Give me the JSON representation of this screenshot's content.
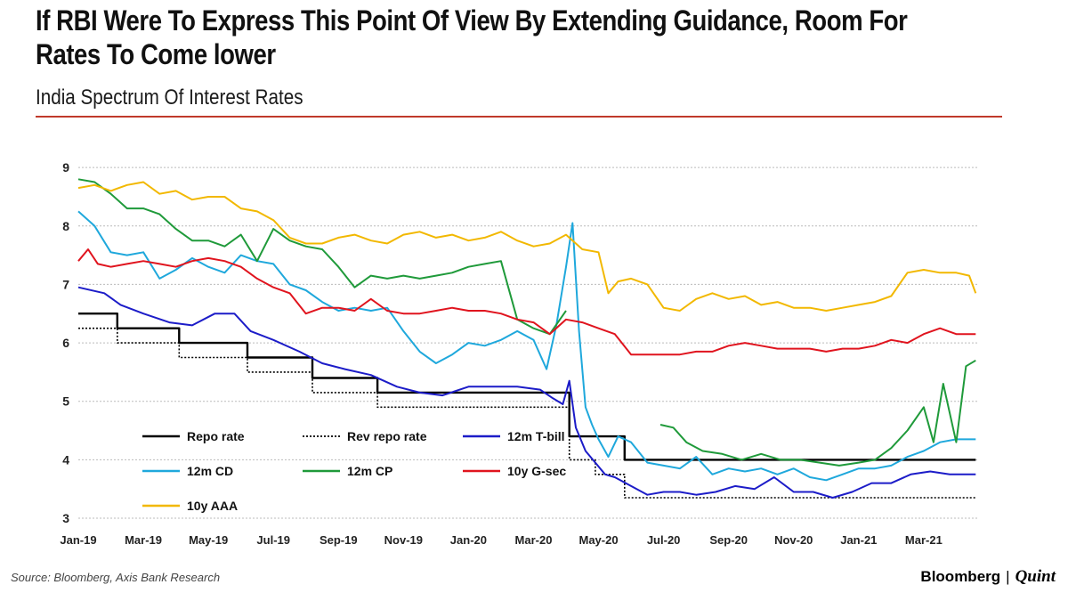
{
  "header": {
    "title": "If RBI Were To Express This Point Of View By Extending Guidance, Room For Rates To Come lower",
    "subtitle": "India Spectrum Of Interest Rates"
  },
  "footer": {
    "source": "Source: Bloomberg, Axis Bank Research",
    "brand_1": "Bloomberg",
    "separator": "|",
    "brand_2": "Quint"
  },
  "colors": {
    "repo": "#000000",
    "rev_repo": "#000000",
    "tbill": "#1c1cc8",
    "cd": "#1fa8dc",
    "cp": "#1f9a3a",
    "gsec": "#e0141e",
    "aaa": "#f2b800",
    "rule": "#c0392b",
    "grid": "#bbbbbb"
  },
  "chart_data": {
    "type": "line",
    "title": "India Spectrum Of Interest Rates",
    "xlabel": "",
    "ylabel": "",
    "xlim": [
      0,
      27.7
    ],
    "ylim": [
      3,
      9.2
    ],
    "yticks": [
      3,
      4,
      5,
      6,
      7,
      8,
      9
    ],
    "x_ticks": [
      {
        "x": 0,
        "label": "Jan-19"
      },
      {
        "x": 2,
        "label": "Mar-19"
      },
      {
        "x": 4,
        "label": "May-19"
      },
      {
        "x": 6,
        "label": "Jul-19"
      },
      {
        "x": 8,
        "label": "Sep-19"
      },
      {
        "x": 10,
        "label": "Nov-19"
      },
      {
        "x": 12,
        "label": "Jan-20"
      },
      {
        "x": 14,
        "label": "Mar-20"
      },
      {
        "x": 16,
        "label": "May-20"
      },
      {
        "x": 18,
        "label": "Jul-20"
      },
      {
        "x": 20,
        "label": "Sep-20"
      },
      {
        "x": 22,
        "label": "Nov-20"
      },
      {
        "x": 24,
        "label": "Jan-21"
      },
      {
        "x": 26,
        "label": "Mar-21"
      }
    ],
    "grid": true,
    "legend_position": "lower-left",
    "series": [
      {
        "key": "repo",
        "name": "Repo rate",
        "style": "solid-step",
        "x": [
          0,
          1.2,
          1.2,
          3.1,
          3.1,
          5.2,
          5.2,
          7.2,
          7.2,
          9.2,
          9.2,
          15.1,
          15.1,
          16.8,
          16.8,
          27.6
        ],
        "y": [
          6.5,
          6.5,
          6.25,
          6.25,
          6.0,
          6.0,
          5.75,
          5.75,
          5.4,
          5.4,
          5.15,
          5.15,
          4.4,
          4.4,
          4.0,
          4.0
        ]
      },
      {
        "key": "rev_repo",
        "name": "Rev repo rate",
        "style": "dotted-step",
        "x": [
          0,
          1.2,
          1.2,
          3.1,
          3.1,
          5.2,
          5.2,
          7.2,
          7.2,
          9.2,
          9.2,
          15.1,
          15.1,
          15.9,
          15.9,
          16.8,
          16.8,
          27.6
        ],
        "y": [
          6.25,
          6.25,
          6.0,
          6.0,
          5.75,
          5.75,
          5.5,
          5.5,
          5.15,
          5.15,
          4.9,
          4.9,
          4.0,
          4.0,
          3.75,
          3.75,
          3.35,
          3.35
        ]
      },
      {
        "key": "tbill",
        "name": "12m T-bill",
        "style": "solid",
        "x": [
          0,
          0.8,
          1.3,
          2,
          2.8,
          3.5,
          4.2,
          4.8,
          5.3,
          6,
          6.8,
          7.5,
          8.2,
          9,
          9.8,
          10.5,
          11.2,
          12,
          12.8,
          13.5,
          14.2,
          14.6,
          14.9,
          15.1,
          15.3,
          15.6,
          15.9,
          16.2,
          16.5,
          17,
          17.5,
          18,
          18.5,
          19,
          19.6,
          20.2,
          20.8,
          21.4,
          22,
          22.6,
          23.2,
          23.8,
          24.4,
          25,
          25.6,
          26.2,
          26.8,
          27.6
        ],
        "y": [
          6.95,
          6.85,
          6.65,
          6.5,
          6.35,
          6.3,
          6.5,
          6.5,
          6.2,
          6.05,
          5.85,
          5.65,
          5.55,
          5.45,
          5.25,
          5.15,
          5.1,
          5.25,
          5.25,
          5.25,
          5.2,
          5.05,
          4.95,
          5.35,
          4.55,
          4.15,
          3.95,
          3.75,
          3.7,
          3.55,
          3.4,
          3.45,
          3.45,
          3.4,
          3.45,
          3.55,
          3.5,
          3.7,
          3.45,
          3.45,
          3.35,
          3.45,
          3.6,
          3.6,
          3.75,
          3.8,
          3.75,
          3.75
        ]
      },
      {
        "key": "cd",
        "name": "12m CD",
        "style": "solid",
        "x": [
          0,
          0.5,
          1,
          1.5,
          2,
          2.5,
          3,
          3.5,
          4,
          4.5,
          5,
          5.5,
          6,
          6.5,
          7,
          7.5,
          8,
          8.5,
          9,
          9.5,
          10,
          10.5,
          11,
          11.5,
          12,
          12.5,
          13,
          13.5,
          14,
          14.4,
          14.7,
          15,
          15.2,
          15.4,
          15.6,
          15.8,
          16,
          16.3,
          16.6,
          17,
          17.5,
          18,
          18.5,
          19,
          19.5,
          20,
          20.5,
          21,
          21.5,
          22,
          22.5,
          23,
          23.5,
          24,
          24.5,
          25,
          25.5,
          26,
          26.5,
          27,
          27.6
        ],
        "y": [
          8.25,
          8.0,
          7.55,
          7.5,
          7.55,
          7.1,
          7.25,
          7.45,
          7.3,
          7.2,
          7.5,
          7.4,
          7.35,
          7.0,
          6.9,
          6.7,
          6.55,
          6.6,
          6.55,
          6.6,
          6.2,
          5.85,
          5.65,
          5.8,
          6.0,
          5.95,
          6.05,
          6.2,
          6.05,
          5.55,
          6.3,
          7.3,
          8.05,
          6.2,
          4.9,
          4.6,
          4.35,
          4.05,
          4.4,
          4.3,
          3.95,
          3.9,
          3.85,
          4.05,
          3.75,
          3.85,
          3.8,
          3.85,
          3.75,
          3.85,
          3.7,
          3.65,
          3.75,
          3.85,
          3.85,
          3.9,
          4.05,
          4.15,
          4.3,
          4.35,
          4.35
        ]
      },
      {
        "key": "cp",
        "name": "12m CP",
        "style": "solid",
        "x": [
          0,
          0.5,
          1,
          1.5,
          2,
          2.5,
          3,
          3.5,
          4,
          4.5,
          5,
          5.5,
          6,
          6.5,
          7,
          7.5,
          8,
          8.5,
          9,
          9.5,
          10,
          10.5,
          11,
          11.5,
          12,
          12.5,
          13,
          13.5,
          14,
          14.5,
          15
        ],
        "y": [
          8.8,
          8.75,
          8.55,
          8.3,
          8.3,
          8.2,
          7.95,
          7.75,
          7.75,
          7.65,
          7.85,
          7.4,
          7.95,
          7.75,
          7.65,
          7.6,
          7.3,
          6.95,
          7.15,
          7.1,
          7.15,
          7.1,
          7.15,
          7.2,
          7.3,
          7.35,
          7.4,
          6.4,
          6.25,
          6.15,
          6.55
        ]
      },
      {
        "key": "cp2",
        "name": "12m CP",
        "style": "solid",
        "legend": false,
        "x": [
          17.9,
          18.3,
          18.7,
          19.2,
          19.8,
          20.4,
          21,
          21.6,
          22.2,
          22.8,
          23.4,
          24,
          24.5,
          25,
          25.5,
          26,
          26.3,
          26.6,
          27,
          27.3,
          27.6
        ],
        "y": [
          4.6,
          4.55,
          4.3,
          4.15,
          4.1,
          4.0,
          4.1,
          4.0,
          4.0,
          3.95,
          3.9,
          3.95,
          4.0,
          4.2,
          4.5,
          4.9,
          4.3,
          5.3,
          4.3,
          5.6,
          5.7
        ]
      },
      {
        "key": "gsec",
        "name": "10y G-sec",
        "style": "solid",
        "x": [
          0,
          0.3,
          0.6,
          1,
          1.5,
          2,
          2.5,
          3,
          3.5,
          4,
          4.5,
          5,
          5.5,
          6,
          6.5,
          7,
          7.5,
          8,
          8.5,
          9,
          9.5,
          10,
          10.5,
          11,
          11.5,
          12,
          12.5,
          13,
          13.5,
          14,
          14.5,
          15,
          15.5,
          16,
          16.5,
          17,
          17.5,
          18,
          18.5,
          19,
          19.5,
          20,
          20.5,
          21,
          21.5,
          22,
          22.5,
          23,
          23.5,
          24,
          24.5,
          25,
          25.5,
          26,
          26.5,
          27,
          27.6
        ],
        "y": [
          7.4,
          7.6,
          7.35,
          7.3,
          7.35,
          7.4,
          7.35,
          7.3,
          7.4,
          7.45,
          7.4,
          7.3,
          7.1,
          6.95,
          6.85,
          6.5,
          6.6,
          6.6,
          6.55,
          6.75,
          6.55,
          6.5,
          6.5,
          6.55,
          6.6,
          6.55,
          6.55,
          6.5,
          6.4,
          6.35,
          6.15,
          6.4,
          6.35,
          6.25,
          6.15,
          5.8,
          5.8,
          5.8,
          5.8,
          5.85,
          5.85,
          5.95,
          6.0,
          5.95,
          5.9,
          5.9,
          5.9,
          5.85,
          5.9,
          5.9,
          5.95,
          6.05,
          6.0,
          6.15,
          6.25,
          6.15,
          6.15
        ]
      },
      {
        "key": "aaa",
        "name": "10y AAA",
        "style": "solid",
        "x": [
          0,
          0.5,
          1,
          1.5,
          2,
          2.5,
          3,
          3.5,
          4,
          4.5,
          5,
          5.5,
          6,
          6.5,
          7,
          7.5,
          8,
          8.5,
          9,
          9.5,
          10,
          10.5,
          11,
          11.5,
          12,
          12.5,
          13,
          13.5,
          14,
          14.5,
          15,
          15.5,
          16,
          16.3,
          16.6,
          17,
          17.5,
          18,
          18.5,
          19,
          19.5,
          20,
          20.5,
          21,
          21.5,
          22,
          22.5,
          23,
          23.5,
          24,
          24.5,
          25,
          25.5,
          26,
          26.5,
          27,
          27.4,
          27.6
        ],
        "y": [
          8.65,
          8.7,
          8.6,
          8.7,
          8.75,
          8.55,
          8.6,
          8.45,
          8.5,
          8.5,
          8.3,
          8.25,
          8.1,
          7.8,
          7.7,
          7.7,
          7.8,
          7.85,
          7.75,
          7.7,
          7.85,
          7.9,
          7.8,
          7.85,
          7.75,
          7.8,
          7.9,
          7.75,
          7.65,
          7.7,
          7.85,
          7.6,
          7.55,
          6.85,
          7.05,
          7.1,
          7.0,
          6.6,
          6.55,
          6.75,
          6.85,
          6.75,
          6.8,
          6.65,
          6.7,
          6.6,
          6.6,
          6.55,
          6.6,
          6.65,
          6.7,
          6.8,
          7.2,
          7.25,
          7.2,
          7.2,
          7.15,
          6.85
        ]
      }
    ]
  }
}
